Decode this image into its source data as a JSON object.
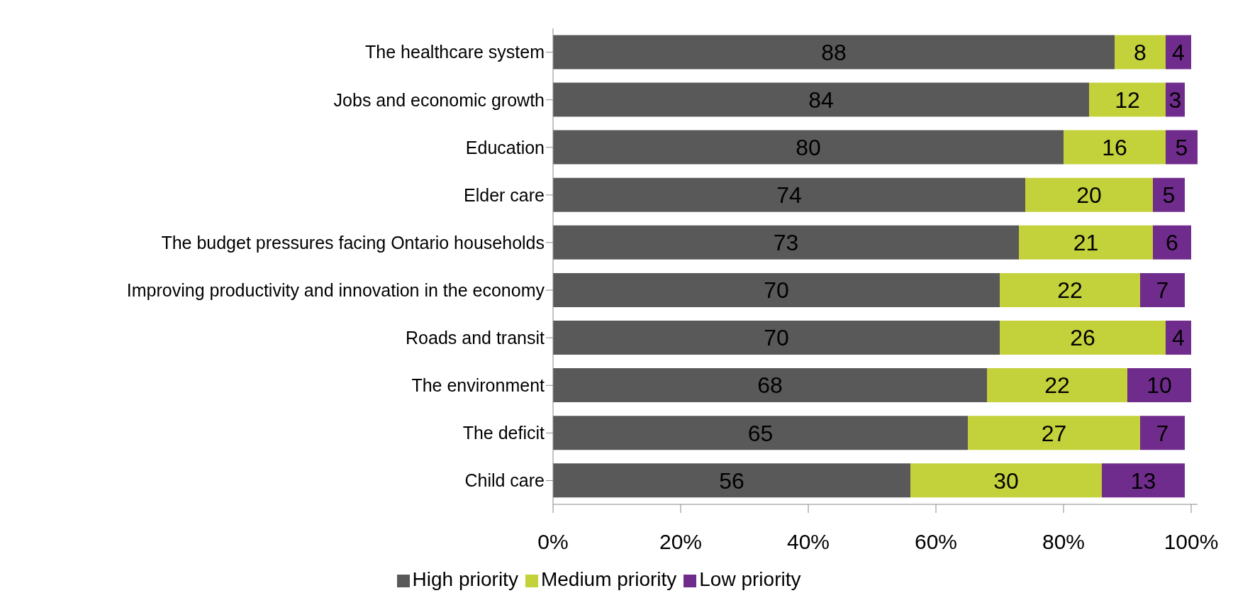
{
  "chart_data": {
    "type": "bar",
    "orientation": "horizontal",
    "stacked": true,
    "categories": [
      "The  healthcare system",
      "Jobs and economic growth",
      "Education",
      "Elder care",
      "The budget pressures facing Ontario households",
      "Improving productivity and innovation in the economy",
      "Roads and transit",
      "The environment",
      "The deficit",
      "Child care"
    ],
    "series": [
      {
        "name": "High priority",
        "color": "#595959",
        "values": [
          88,
          84,
          80,
          74,
          73,
          70,
          70,
          68,
          65,
          56
        ]
      },
      {
        "name": "Medium priority",
        "color": "#c3d13b",
        "values": [
          8,
          12,
          16,
          20,
          21,
          22,
          26,
          22,
          27,
          30
        ]
      },
      {
        "name": "Low priority",
        "color": "#702c8c",
        "values": [
          4,
          3,
          5,
          5,
          6,
          7,
          4,
          10,
          7,
          13
        ]
      }
    ],
    "xlim": [
      0,
      101
    ],
    "xticks": [
      {
        "value": 0,
        "label": "0%"
      },
      {
        "value": 20,
        "label": "20%"
      },
      {
        "value": 40,
        "label": "40%"
      },
      {
        "value": 60,
        "label": "60%"
      },
      {
        "value": 80,
        "label": "80%"
      },
      {
        "value": 100,
        "label": "100%"
      }
    ],
    "data_labels": true,
    "legend": "bottom",
    "grid": false
  }
}
